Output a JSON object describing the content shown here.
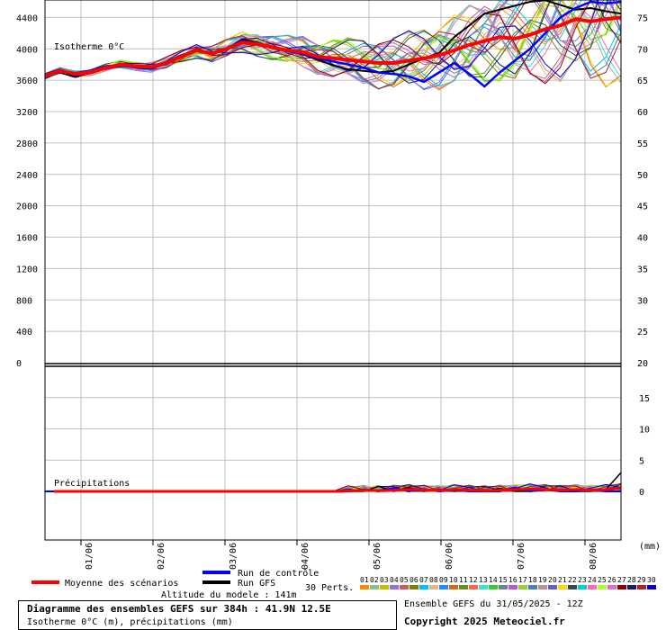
{
  "chart_data": {
    "type": "line",
    "upper": {
      "annotation": "Isotherme 0°C",
      "y_left_ticks": [
        "4400",
        "4000",
        "3600",
        "3200",
        "2800",
        "2400",
        "2000",
        "1600",
        "1200",
        "800",
        "400",
        "0"
      ],
      "y_right_ticks": [
        "75",
        "70",
        "65",
        "60",
        "55",
        "50",
        "45",
        "40",
        "35",
        "30",
        "25",
        "20"
      ],
      "ylim": [
        0,
        4600
      ],
      "series": [
        {
          "name": "Moyenne des scénarios",
          "color": "#ff0000",
          "values": [
            3650,
            3720,
            3680,
            3700,
            3760,
            3800,
            3780,
            3770,
            3820,
            3900,
            3980,
            3940,
            4000,
            4080,
            4060,
            4020,
            3980,
            3960,
            3900,
            3880,
            3860,
            3840,
            3820,
            3820,
            3850,
            3880,
            3920,
            3980,
            4050,
            4100,
            4150,
            4130,
            4180,
            4250,
            4300,
            4380,
            4350,
            4380,
            4400
          ]
        },
        {
          "name": "Run de contrôle",
          "color": "#0000ff",
          "values": [
            3650,
            3730,
            3660,
            3690,
            3750,
            3790,
            3760,
            3750,
            3810,
            3900,
            3990,
            3950,
            4010,
            4100,
            4070,
            4010,
            3970,
            3940,
            3880,
            3840,
            3800,
            3760,
            3700,
            3680,
            3650,
            3580,
            3700,
            3820,
            3680,
            3520,
            3700,
            3850,
            4000,
            4200,
            4400,
            4520,
            4600,
            4580,
            4600
          ]
        },
        {
          "name": "Run GFS",
          "color": "#000000",
          "values": [
            3650,
            3700,
            3640,
            3700,
            3760,
            3810,
            3770,
            3760,
            3830,
            3920,
            3990,
            3930,
            4000,
            4120,
            4080,
            4020,
            3990,
            3930,
            3860,
            3790,
            3740,
            3720,
            3700,
            3720,
            3800,
            3880,
            3950,
            4150,
            4300,
            4450,
            4500,
            4550,
            4600,
            4620,
            4560,
            4500,
            4520,
            4480,
            4450
          ]
        }
      ]
    },
    "lower": {
      "annotation": "Précipitations",
      "y_right_ticks": [
        "20",
        "15",
        "10",
        "5",
        "0"
      ],
      "ylim": [
        -8,
        20
      ],
      "unit": "(mm)",
      "series": [
        {
          "name": "Moyenne des scénarios",
          "color": "#ff0000",
          "values": [
            0,
            0,
            0,
            0,
            0,
            0,
            0,
            0,
            0,
            0,
            0,
            0,
            0,
            0,
            0,
            0,
            0,
            0,
            0,
            0,
            0.1,
            0.2,
            0.1,
            0.2,
            0.3,
            0.2,
            0.2,
            0.3,
            0.2,
            0.1,
            0.2,
            0.3,
            0.4,
            0.3,
            0.2,
            0.3,
            0.2,
            0.3,
            0.5
          ]
        },
        {
          "name": "Run de contrôle",
          "color": "#0000ff",
          "values": [
            0,
            0,
            0,
            0,
            0,
            0,
            0,
            0,
            0,
            0,
            0,
            0,
            0,
            0,
            0,
            0,
            0,
            0,
            0,
            0,
            0,
            0.3,
            0,
            0.5,
            0,
            0.4,
            0,
            0.2,
            0,
            0,
            0,
            0.6,
            0,
            0.3,
            0,
            0,
            0.2,
            0,
            0
          ]
        },
        {
          "name": "Run GFS",
          "color": "#000000",
          "values": [
            0,
            0,
            0,
            0,
            0,
            0,
            0,
            0,
            0,
            0,
            0,
            0,
            0,
            0,
            0,
            0,
            0,
            0,
            0,
            0,
            0,
            0,
            0.8,
            0,
            0.6,
            0,
            0.4,
            0,
            0.3,
            0,
            0.5,
            0,
            0,
            0.2,
            0,
            0,
            0,
            0.3,
            3
          ]
        }
      ]
    },
    "x_ticks": [
      "01/06",
      "02/06",
      "03/06",
      "04/06",
      "05/06",
      "06/06",
      "07/06",
      "08/06"
    ],
    "grid": true
  },
  "legend": {
    "mean_label": "Moyenne des scénarios",
    "control_label": "Run de contrôle",
    "gfs_label": "Run GFS",
    "perts_label": "30 Perts.",
    "altitude": "Altitude du modele : 141m",
    "pert_numbers": [
      "01",
      "02",
      "03",
      "04",
      "05",
      "06",
      "07",
      "08",
      "09",
      "10",
      "11",
      "12",
      "13",
      "14",
      "15",
      "16",
      "17",
      "18",
      "19",
      "20",
      "21",
      "22",
      "23",
      "24",
      "25",
      "26",
      "27",
      "28",
      "29",
      "30"
    ],
    "pert_colors": [
      "#ff8c00",
      "#8fbc8f",
      "#c0c000",
      "#9370db",
      "#cd5c5c",
      "#808000",
      "#00bfff",
      "#deb887",
      "#1e90ff",
      "#d2691e",
      "#6b8e23",
      "#ff6347",
      "#40e0d0",
      "#32cd32",
      "#708090",
      "#ba55d3",
      "#9acd32",
      "#4682b4",
      "#bc8f8f",
      "#6a5acd",
      "#ffd700",
      "#2f4f4f",
      "#00ced1",
      "#ff69b4",
      "#adff2f",
      "#da70d6",
      "#8b0000",
      "#191970",
      "#b22222",
      "#0000cd"
    ]
  },
  "footer": {
    "title": "Diagramme des ensembles GEFS sur 384h : 41.9N 12.5E",
    "subtitle": "Isotherme 0°C (m), précipitations (mm)",
    "run_info": "Ensemble GEFS du 31/05/2025 - 12Z",
    "copyright": "Copyright 2025 Meteociel.fr"
  }
}
